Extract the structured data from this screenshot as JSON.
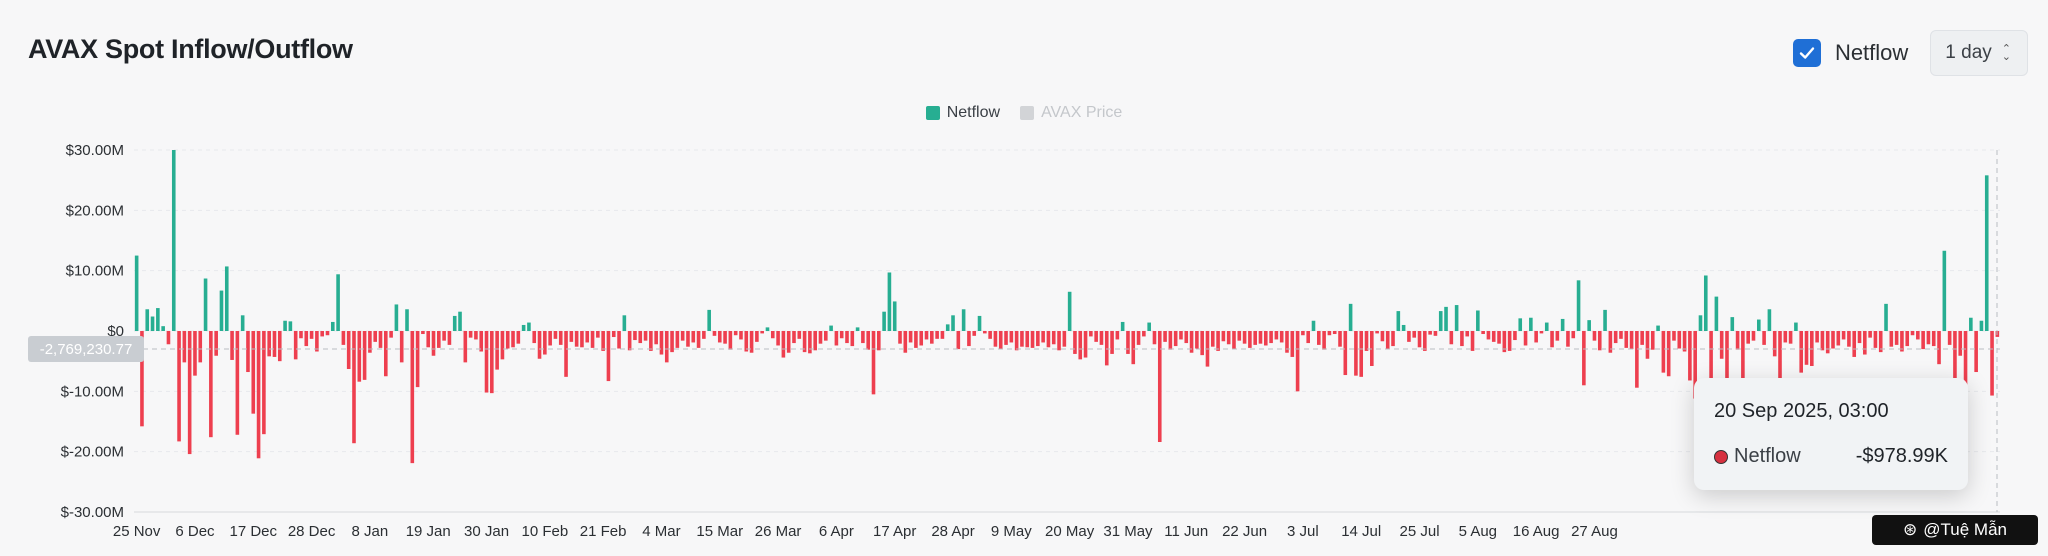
{
  "header": {
    "title": "AVAX Spot Inflow/Outflow",
    "toggle_label": "Netflow",
    "interval": "1 day"
  },
  "tooltip": {
    "date": "20 Sep 2025, 03:00",
    "series": "Netflow",
    "value": "-$978.99K"
  },
  "cursor_value": "-2,769,230.77",
  "watermark": "@Tuệ Mẫn",
  "colors": {
    "positive": "#27ae92",
    "negative": "#ee3f4f",
    "price": "#d2d4d7",
    "accent": "#1f6fd6"
  },
  "chart_data": {
    "type": "bar",
    "legend": [
      {
        "name": "Netflow",
        "color": "#27ae92",
        "active": true
      },
      {
        "name": "AVAX Price",
        "color": "#d2d4d7",
        "active": false
      }
    ],
    "ylim": [
      -30000000,
      30000000
    ],
    "y_ticks": [
      30000000,
      20000000,
      10000000,
      0,
      -10000000,
      -20000000,
      -30000000
    ],
    "y_tick_labels": [
      "$30.00M",
      "$20.00M",
      "$10.00M",
      "$0",
      "$-10.00M",
      "$-20.00M",
      "$-30.00M"
    ],
    "x_tick_labels": [
      "25 Nov",
      "6 Dec",
      "17 Dec",
      "28 Dec",
      "8 Jan",
      "19 Jan",
      "30 Jan",
      "10 Feb",
      "21 Feb",
      "4 Mar",
      "15 Mar",
      "26 Mar",
      "6 Apr",
      "17 Apr",
      "28 Apr",
      "9 May",
      "20 May",
      "31 May",
      "11 Jun",
      "22 Jun",
      "3 Jul",
      "14 Jul",
      "25 Jul",
      "5 Aug",
      "16 Aug",
      "27 Aug",
      "20 Sep"
    ],
    "x_start": "2024-11-25",
    "series": [
      {
        "name": "Netflow",
        "unit": "USD millions",
        "values": [
          12.5,
          -15.8,
          3.6,
          2.4,
          3.8,
          0.8,
          -2.2,
          30.0,
          -18.3,
          -5.2,
          -20.4,
          -7.4,
          -5.2,
          8.7,
          -17.6,
          -4.1,
          6.7,
          10.7,
          -4.8,
          -17.2,
          2.6,
          -6.8,
          -13.7,
          -21.1,
          -17.1,
          -4.2,
          -4.3,
          -5.0,
          1.7,
          1.6,
          -4.7,
          -1.2,
          -2.5,
          -1.3,
          -3.4,
          -0.9,
          -0.7,
          1.5,
          9.4,
          -2.3,
          -6.3,
          -18.6,
          -8.4,
          -8.1,
          -3.6,
          -1.8,
          -2.8,
          -7.5,
          -1.1,
          4.4,
          -5.2,
          3.6,
          -21.9,
          -9.3,
          -0.5,
          -2.7,
          -4.1,
          -2.8,
          -1.6,
          -2.3,
          2.5,
          3.2,
          -5.2,
          -1.1,
          -1.4,
          -3.4,
          -10.2,
          -10.3,
          -6.4,
          -4.7,
          -2.9,
          -2.7,
          -2.1,
          1.0,
          1.4,
          -2.0,
          -4.6,
          -3.9,
          -2.4,
          -1.3,
          -2.3,
          -7.6,
          -1.8,
          -2.6,
          -2.7,
          -1.9,
          -2.8,
          -1.1,
          -3.3,
          -8.3,
          -1.0,
          -2.9,
          2.6,
          -3.2,
          -1.5,
          -2.0,
          -1.6,
          -3.3,
          -2.2,
          -3.9,
          -5.2,
          -3.5,
          -2.8,
          -1.6,
          -2.6,
          -1.9,
          -2.8,
          -1.3,
          3.5,
          -0.8,
          -1.9,
          -2.1,
          -3.1,
          -0.7,
          -1.4,
          -3.4,
          -3.6,
          -1.8,
          -0.4,
          0.6,
          -1.2,
          -2.4,
          -4.4,
          -3.6,
          -2.0,
          -1.3,
          -3.5,
          -3.7,
          -3.2,
          -2.1,
          -1.6,
          0.9,
          -2.4,
          -1.2,
          -2.0,
          -2.5,
          0.6,
          -2.0,
          -3.1,
          -10.5,
          -3.2,
          3.2,
          9.7,
          4.9,
          -2.1,
          -3.6,
          -1.9,
          -2.8,
          -2.4,
          -1.4,
          -2.1,
          -1.3,
          -1.3,
          1.1,
          2.6,
          -3.0,
          3.6,
          -2.5,
          -0.8,
          2.5,
          -0.4,
          -1.3,
          -2.6,
          -2.9,
          -2.3,
          -1.9,
          -3.2,
          -2.6,
          -2.7,
          -2.8,
          -2.5,
          -1.9,
          -2.7,
          -2.2,
          -3.2,
          -2.6,
          6.5,
          -3.8,
          -4.7,
          -4.4,
          -0.9,
          -1.8,
          -2.3,
          -5.7,
          -3.8,
          -1.4,
          1.5,
          -3.8,
          -5.5,
          -2.3,
          -0.9,
          1.4,
          -2.2,
          -18.4,
          -1.8,
          -3.1,
          -2.5,
          -1.4,
          -2.0,
          -3.6,
          -2.9,
          -4.0,
          -5.9,
          -2.6,
          -3.3,
          -1.7,
          -2.2,
          -2.9,
          -1.6,
          -2.1,
          -2.8,
          -2.3,
          -2.1,
          -2.4,
          -2.0,
          -1.4,
          -1.9,
          -3.6,
          -4.3,
          -10.0,
          -0.7,
          -2.0,
          1.7,
          -2.3,
          -3.1,
          -0.7,
          -0.5,
          -2.6,
          -7.3,
          4.5,
          -7.4,
          -7.6,
          -3.3,
          -5.8,
          -0.4,
          -1.7,
          -2.9,
          -2.5,
          3.3,
          1.0,
          -1.8,
          -1.1,
          -2.7,
          -3.3,
          -0.6,
          -0.8,
          3.3,
          4.0,
          -2.2,
          4.3,
          -2.5,
          -0.9,
          -3.3,
          3.4,
          -0.5,
          -1.4,
          -1.8,
          -2.1,
          -3.5,
          -3.3,
          -1.5,
          2.1,
          -2.4,
          2.2,
          -1.9,
          -0.4,
          1.4,
          -2.7,
          -1.6,
          2.0,
          -2.6,
          -1.2,
          8.4,
          -9.0,
          1.8,
          -1.6,
          -3.2,
          3.5,
          -3.6,
          -2.0,
          -1.3,
          -2.8,
          -3.0,
          -9.4,
          -2.3,
          -4.6,
          -3.1,
          0.9,
          -6.9,
          -7.5,
          -1.6,
          -2.9,
          -3.4,
          -8.2,
          -11.2,
          2.6,
          9.2,
          -11.4,
          5.7,
          -4.6,
          -10.3,
          2.3,
          -3.1,
          -8.5,
          -2.1,
          -1.6,
          1.9,
          -2.3,
          3.6,
          -4.2,
          -8.0,
          -1.9,
          -2.1,
          1.4,
          -6.9,
          -5.6,
          -5.8,
          -1.9,
          -3.2,
          -3.7,
          -2.9,
          -2.4,
          -1.4,
          -2.6,
          -4.3,
          -2.0,
          -3.9,
          -1.1,
          -2.8,
          -3.5,
          4.5,
          -2.6,
          -2.3,
          -3.4,
          -2.5,
          -0.7,
          -1.4,
          -3.0,
          -2.2,
          -2.5,
          -5.5,
          13.3,
          -2.3,
          -7.8,
          -4.1,
          -9.7,
          2.2,
          -6.8,
          1.7,
          25.8,
          -10.7,
          -0.98
        ]
      }
    ]
  }
}
